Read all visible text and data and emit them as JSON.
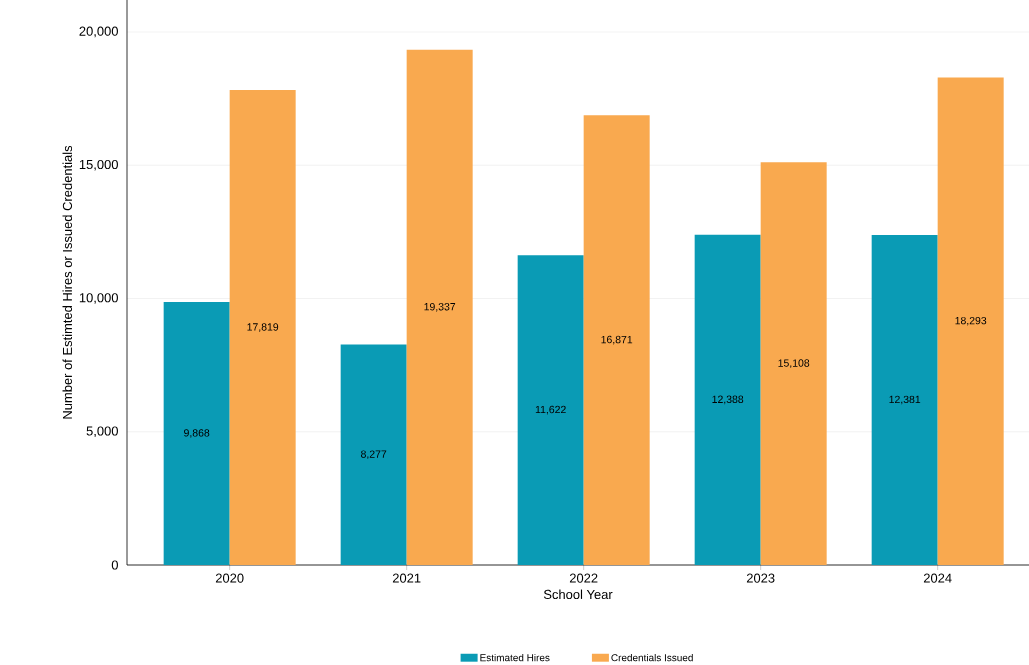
{
  "chart_data": {
    "type": "bar",
    "xlabel": "School Year",
    "ylabel": "Number of Estimted Hires or Issued Credentials",
    "categories": [
      "2020",
      "2021",
      "2022",
      "2023",
      "2024"
    ],
    "series": [
      {
        "name": "Estimated Hires",
        "color": "#0a9bb5",
        "values": [
          9868,
          8277,
          11622,
          12388,
          12381
        ],
        "value_labels": [
          "9,868",
          "8,277",
          "11,622",
          "12,388",
          "12,381"
        ]
      },
      {
        "name": "Credentials Issued",
        "color": "#f9a94f",
        "values": [
          17819,
          19337,
          16871,
          15108,
          18293
        ],
        "value_labels": [
          "17,819",
          "19,337",
          "16,871",
          "15,108",
          "18,293"
        ]
      }
    ],
    "ylim": [
      0,
      21200
    ],
    "yticks": [
      0,
      {
        "value": 5000,
        "label": "5,000"
      },
      {
        "value": 10000,
        "label": "10,000"
      },
      {
        "value": 15000,
        "label": "15,000"
      },
      {
        "value": 20000,
        "label": "20,000"
      }
    ],
    "grid": "y",
    "legend": "bottom"
  }
}
